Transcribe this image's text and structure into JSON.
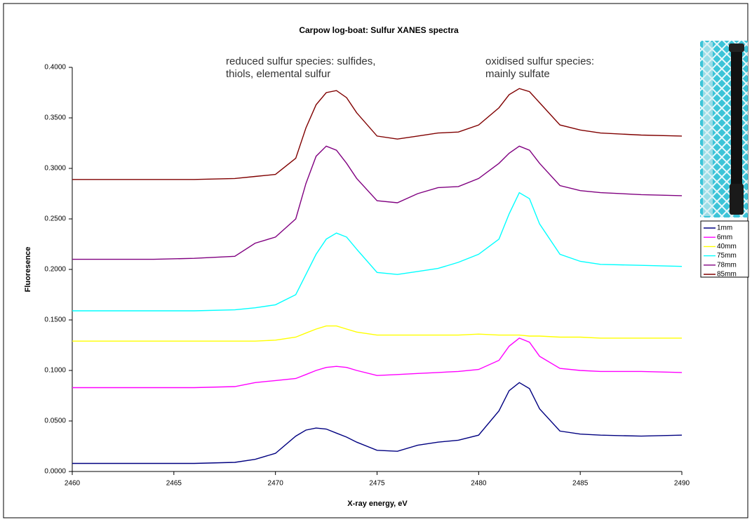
{
  "chart_data": {
    "type": "line",
    "title": "Carpow log-boat: Sulfur XANES spectra",
    "x_label": "X-ray energy, eV",
    "y_label": "Fluoresence",
    "annotations": [
      [
        "reduced sulfur species: sulfides,",
        "thiols, elemental sulfur"
      ],
      [
        "oxidised sulfur species:",
        "mainly sulfate"
      ]
    ],
    "xlim": [
      2460,
      2490
    ],
    "xticks": [
      2460,
      2465,
      2470,
      2475,
      2480,
      2485,
      2490
    ],
    "ylim": [
      0,
      0.4
    ],
    "yticks": [
      {
        "value": 0,
        "label": "0.0000"
      },
      {
        "value": 0.05,
        "label": "0.0500"
      },
      {
        "value": 0.1,
        "label": "0.1000"
      },
      {
        "value": 0.15,
        "label": "0.1500"
      },
      {
        "value": 0.2,
        "label": "0.2000"
      },
      {
        "value": 0.25,
        "label": "0.2500"
      },
      {
        "value": 0.3,
        "label": "0.3000"
      },
      {
        "value": 0.35,
        "label": "0.3500"
      },
      {
        "value": 0.4,
        "label": "0.4000"
      }
    ],
    "grid": false,
    "legend": "right",
    "x": [
      2460,
      2462,
      2464,
      2466,
      2468,
      2469,
      2470,
      2471,
      2471.5,
      2472,
      2472.5,
      2473,
      2473.5,
      2474,
      2475,
      2476,
      2477,
      2478,
      2479,
      2480,
      2481,
      2481.5,
      2482,
      2482.5,
      2483,
      2484,
      2485,
      2486,
      2488,
      2490
    ],
    "series": [
      {
        "name": "1mm",
        "color": "#000080",
        "values": [
          0.008,
          0.008,
          0.008,
          0.008,
          0.009,
          0.012,
          0.018,
          0.035,
          0.041,
          0.043,
          0.042,
          0.038,
          0.034,
          0.029,
          0.021,
          0.02,
          0.026,
          0.029,
          0.031,
          0.036,
          0.06,
          0.08,
          0.088,
          0.082,
          0.062,
          0.04,
          0.037,
          0.036,
          0.035,
          0.036
        ]
      },
      {
        "name": "6mm",
        "color": "#ff00ff",
        "values": [
          0.083,
          0.083,
          0.083,
          0.083,
          0.084,
          0.088,
          0.09,
          0.092,
          0.096,
          0.1,
          0.103,
          0.104,
          0.103,
          0.1,
          0.095,
          0.096,
          0.097,
          0.098,
          0.099,
          0.101,
          0.11,
          0.124,
          0.132,
          0.128,
          0.114,
          0.102,
          0.1,
          0.099,
          0.099,
          0.098
        ]
      },
      {
        "name": "40mm",
        "color": "#ffff00",
        "values": [
          0.129,
          0.129,
          0.129,
          0.129,
          0.129,
          0.129,
          0.13,
          0.133,
          0.137,
          0.141,
          0.144,
          0.144,
          0.141,
          0.138,
          0.135,
          0.135,
          0.135,
          0.135,
          0.135,
          0.136,
          0.135,
          0.135,
          0.135,
          0.134,
          0.134,
          0.133,
          0.133,
          0.132,
          0.132,
          0.132
        ]
      },
      {
        "name": "75mm",
        "color": "#00ffff",
        "values": [
          0.159,
          0.159,
          0.159,
          0.159,
          0.16,
          0.162,
          0.165,
          0.175,
          0.195,
          0.215,
          0.23,
          0.236,
          0.232,
          0.22,
          0.197,
          0.195,
          0.198,
          0.201,
          0.207,
          0.215,
          0.23,
          0.255,
          0.276,
          0.27,
          0.245,
          0.215,
          0.208,
          0.205,
          0.204,
          0.203
        ]
      },
      {
        "name": "78mm",
        "color": "#800080",
        "values": [
          0.21,
          0.21,
          0.21,
          0.211,
          0.213,
          0.226,
          0.232,
          0.25,
          0.285,
          0.312,
          0.322,
          0.318,
          0.305,
          0.29,
          0.268,
          0.266,
          0.275,
          0.281,
          0.282,
          0.29,
          0.305,
          0.315,
          0.322,
          0.318,
          0.305,
          0.283,
          0.278,
          0.276,
          0.274,
          0.273
        ]
      },
      {
        "name": "85mm",
        "color": "#800000",
        "values": [
          0.289,
          0.289,
          0.289,
          0.289,
          0.29,
          0.292,
          0.294,
          0.31,
          0.34,
          0.363,
          0.375,
          0.377,
          0.37,
          0.355,
          0.332,
          0.329,
          0.332,
          0.335,
          0.336,
          0.343,
          0.36,
          0.373,
          0.379,
          0.376,
          0.365,
          0.343,
          0.338,
          0.335,
          0.333,
          0.332
        ]
      }
    ]
  }
}
